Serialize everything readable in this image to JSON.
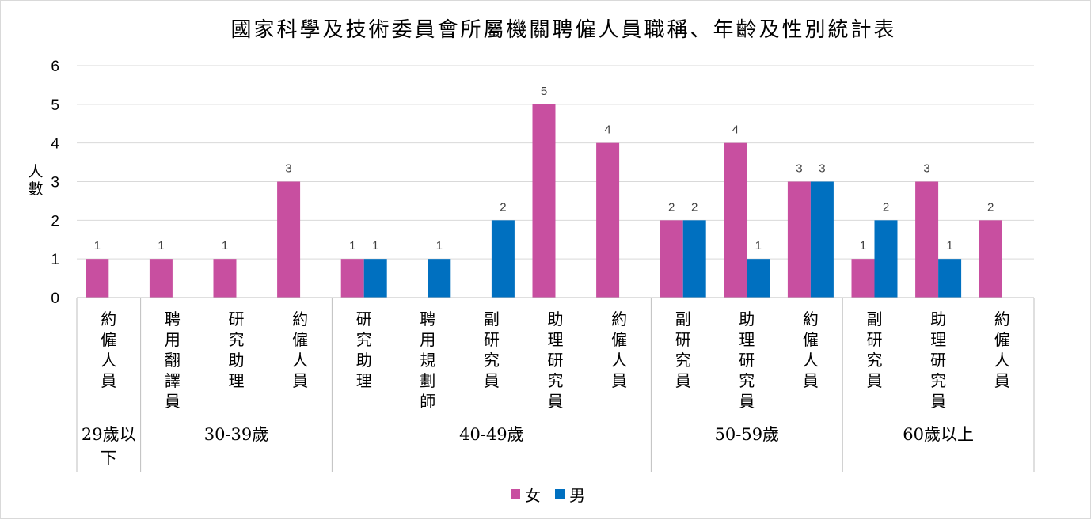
{
  "chart_data": {
    "type": "bar",
    "title": "國家科學及技術委員會所屬機關聘僱人員職稱、年齡及性別統計表",
    "ylabel": "人數",
    "xlabel": "",
    "ylim": [
      0,
      6
    ],
    "yticks": [
      "0",
      "1",
      "2",
      "3",
      "4",
      "5",
      "6"
    ],
    "grid": true,
    "legend_position": "bottom",
    "groups": [
      {
        "label": "29歲以下",
        "count": 1
      },
      {
        "label": "30-39歲",
        "count": 3
      },
      {
        "label": "40-49歲",
        "count": 5
      },
      {
        "label": "50-59歲",
        "count": 3
      },
      {
        "label": "60歲以上",
        "count": 3
      }
    ],
    "categories": [
      "約僱人員",
      "聘用翻譯員",
      "研究助理",
      "約僱人員",
      "研究助理",
      "聘用規劃師",
      "副研究員",
      "助理研究員",
      "約僱人員",
      "副研究員",
      "助理研究員",
      "約僱人員",
      "副研究員",
      "助理研究員",
      "約僱人員"
    ],
    "series": [
      {
        "name": "女",
        "color": "#C84FA0",
        "values": [
          1,
          1,
          1,
          3,
          1,
          null,
          null,
          5,
          4,
          2,
          4,
          3,
          1,
          3,
          2
        ]
      },
      {
        "name": "男",
        "color": "#0070C0",
        "values": [
          null,
          null,
          null,
          null,
          1,
          1,
          2,
          null,
          null,
          2,
          1,
          3,
          2,
          1,
          null
        ]
      }
    ]
  }
}
